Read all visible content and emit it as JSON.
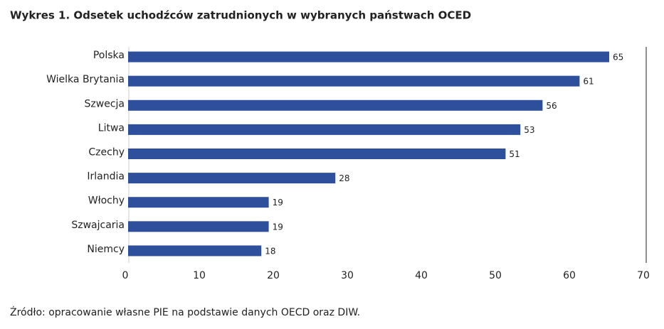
{
  "chart_data": {
    "type": "bar",
    "orientation": "horizontal",
    "title": "Wykres 1.  Odsetek uchodźców zatrudnionych w wybranych państwach OCED",
    "categories": [
      "Polska",
      "Wielka Brytania",
      "Szwecja",
      "Litwa",
      "Czechy",
      "Irlandia",
      "Włochy",
      "Szwajcaria",
      "Niemcy"
    ],
    "values": [
      65,
      61,
      56,
      53,
      51,
      28,
      19,
      19,
      18
    ],
    "color": "#2e4f9c",
    "xlim": [
      0,
      70
    ],
    "xticks": [
      0,
      10,
      20,
      30,
      40,
      50,
      60,
      70
    ],
    "grid": false,
    "source": "Źródło: opracowanie własne PIE na podstawie danych OECD oraz DIW."
  }
}
